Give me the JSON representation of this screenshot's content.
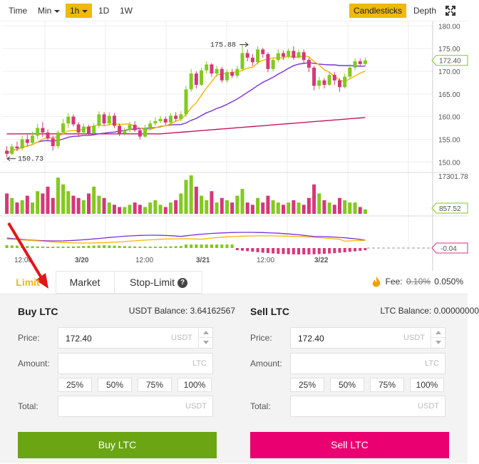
{
  "toolbar": {
    "time_label": "Time",
    "min_label": "Min",
    "interval_label": "1h",
    "day_label": "1D",
    "week_label": "1W",
    "candlesticks_label": "Candlesticks",
    "depth_label": "Depth",
    "fullscreen_icon": "expand-icon"
  },
  "chart": {
    "price_ticks": [
      "180.00",
      "175.00",
      "172.40",
      "170.00",
      "165.00",
      "160.00",
      "155.00",
      "150.00"
    ],
    "current_price": "172.40",
    "high_label": "175.88",
    "low_label": "150.73",
    "volume_max_label": "17301.78",
    "volume_current": "857.52",
    "macd_current": "-0.04",
    "time_labels": [
      "12:00",
      "3/20",
      "12:00",
      "3/21",
      "12:00",
      "3/22"
    ],
    "colors": {
      "up": "#82c91e",
      "down": "#d6377a",
      "ma_short": "#f7b500",
      "ma_mid": "#7b2fd6",
      "ma_long": "#c2185b"
    }
  },
  "chart_data": {
    "type": "candlestick",
    "ylim": [
      148,
      181
    ],
    "y_ticks": [
      150,
      155,
      160,
      165,
      170,
      175,
      180
    ],
    "last_price": 172.4,
    "high": 175.88,
    "low": 150.73,
    "candles": [
      [
        152.5,
        151.8,
        153.5,
        151.0
      ],
      [
        151.8,
        153.4,
        154.0,
        151.5
      ],
      [
        153.4,
        153.0,
        154.5,
        152.4
      ],
      [
        153.0,
        155.0,
        155.8,
        152.5
      ],
      [
        155.0,
        154.2,
        156.0,
        153.5
      ],
      [
        154.2,
        155.8,
        156.7,
        154.0
      ],
      [
        155.8,
        157.5,
        158.4,
        155.0
      ],
      [
        157.5,
        156.5,
        158.8,
        155.5
      ],
      [
        156.5,
        155.2,
        157.2,
        154.5
      ],
      [
        155.2,
        153.5,
        155.8,
        152.5
      ],
      [
        153.5,
        156.5,
        157.0,
        153.0
      ],
      [
        156.5,
        158.5,
        159.5,
        156.0
      ],
      [
        158.5,
        160.0,
        160.8,
        157.5
      ],
      [
        160.0,
        158.3,
        160.5,
        157.8
      ],
      [
        158.3,
        156.5,
        158.8,
        155.5
      ],
      [
        156.5,
        157.8,
        158.5,
        155.8
      ],
      [
        157.8,
        156.3,
        158.2,
        155.8
      ],
      [
        156.3,
        158.0,
        158.6,
        156.0
      ],
      [
        158.0,
        160.5,
        161.2,
        157.5
      ],
      [
        160.5,
        158.5,
        161.0,
        158.0
      ],
      [
        158.5,
        160.2,
        161.0,
        158.0
      ],
      [
        160.2,
        158.0,
        160.8,
        157.5
      ],
      [
        158.0,
        156.3,
        158.5,
        155.7
      ],
      [
        156.3,
        157.0,
        157.6,
        155.8
      ],
      [
        157.0,
        158.2,
        158.8,
        156.5
      ],
      [
        158.2,
        157.0,
        159.0,
        156.6
      ],
      [
        157.0,
        155.6,
        157.5,
        155.0
      ],
      [
        155.6,
        157.5,
        158.2,
        155.3
      ],
      [
        157.5,
        158.5,
        159.2,
        157.0
      ],
      [
        158.5,
        159.0,
        159.8,
        158.0
      ],
      [
        159.0,
        159.5,
        160.2,
        158.5
      ],
      [
        159.5,
        158.7,
        160.0,
        158.2
      ],
      [
        158.7,
        160.2,
        160.8,
        158.0
      ],
      [
        160.2,
        159.5,
        161.0,
        159.0
      ],
      [
        159.5,
        160.5,
        161.2,
        159.0
      ],
      [
        160.5,
        166.0,
        166.8,
        160.0
      ],
      [
        166.0,
        169.5,
        170.5,
        165.5
      ],
      [
        169.5,
        167.0,
        170.0,
        166.2
      ],
      [
        167.0,
        170.2,
        170.8,
        166.8
      ],
      [
        170.2,
        171.5,
        172.2,
        169.5
      ],
      [
        171.5,
        169.5,
        171.8,
        168.8
      ],
      [
        169.5,
        170.5,
        171.2,
        168.8
      ],
      [
        170.5,
        168.0,
        171.0,
        167.5
      ],
      [
        168.0,
        169.8,
        170.4,
        167.5
      ],
      [
        169.8,
        169.0,
        170.5,
        168.5
      ],
      [
        169.0,
        170.5,
        171.2,
        168.5
      ],
      [
        170.5,
        174.0,
        175.88,
        170.0
      ],
      [
        174.0,
        173.0,
        174.8,
        172.2
      ],
      [
        173.0,
        172.0,
        173.8,
        171.2
      ],
      [
        172.0,
        174.8,
        175.5,
        171.5
      ],
      [
        174.8,
        173.8,
        175.2,
        173.0
      ],
      [
        173.8,
        170.5,
        174.2,
        169.8
      ],
      [
        170.5,
        172.5,
        173.0,
        170.0
      ],
      [
        172.5,
        174.0,
        174.8,
        172.0
      ],
      [
        174.0,
        173.2,
        174.6,
        172.5
      ],
      [
        173.2,
        174.5,
        175.0,
        172.8
      ],
      [
        174.5,
        173.0,
        175.5,
        172.5
      ],
      [
        173.0,
        174.2,
        174.8,
        172.8
      ],
      [
        174.2,
        172.5,
        174.8,
        171.8
      ],
      [
        172.5,
        170.8,
        173.0,
        169.8
      ],
      [
        170.8,
        166.8,
        171.2,
        165.8
      ],
      [
        166.8,
        168.0,
        168.8,
        166.0
      ],
      [
        168.0,
        167.0,
        168.5,
        166.2
      ],
      [
        167.0,
        169.2,
        169.8,
        166.8
      ],
      [
        169.2,
        168.0,
        169.8,
        167.0
      ],
      [
        168.0,
        166.5,
        168.5,
        165.5
      ],
      [
        166.5,
        168.8,
        169.5,
        166.2
      ],
      [
        168.8,
        170.8,
        171.5,
        168.5
      ],
      [
        170.8,
        172.2,
        172.8,
        170.2
      ],
      [
        172.2,
        171.6,
        172.8,
        171.0
      ],
      [
        171.6,
        172.4,
        173.0,
        171.2
      ]
    ],
    "volume": [
      9,
      7,
      5,
      6,
      8,
      5,
      10,
      9,
      12,
      7,
      16,
      13,
      10,
      8,
      7,
      6,
      9,
      12,
      8,
      7,
      5,
      4,
      3,
      3,
      4,
      5,
      4,
      3,
      5,
      6,
      4,
      3,
      5,
      6,
      9,
      15,
      17,
      12,
      8,
      6,
      10,
      5,
      7,
      6,
      5,
      8,
      11,
      5,
      4,
      7,
      5,
      8,
      6,
      5,
      4,
      5,
      6,
      5,
      4,
      7,
      13,
      9,
      6,
      5,
      4,
      7,
      6,
      5,
      5,
      3,
      2
    ],
    "volume_max": 17301.78,
    "volume_last": 857.52,
    "macd_last": -0.04
  },
  "tabs": {
    "limit": "Limit",
    "market": "Market",
    "stop_limit": "Stop-Limit",
    "help_icon": "?"
  },
  "fee": {
    "label": "Fee:",
    "old": "0.10%",
    "new": "0.050%"
  },
  "buy": {
    "title": "Buy LTC",
    "balance_label": "USDT Balance: 3.64162567",
    "price_label": "Price:",
    "price_value": "172.40",
    "price_unit": "USDT",
    "amount_label": "Amount:",
    "amount_unit": "LTC",
    "total_label": "Total:",
    "total_unit": "USDT",
    "pcts": [
      "25%",
      "50%",
      "75%",
      "100%"
    ],
    "button": "Buy LTC"
  },
  "sell": {
    "title": "Sell LTC",
    "balance_label": "LTC Balance: 0.00000000",
    "price_label": "Price:",
    "price_value": "172.40",
    "price_unit": "USDT",
    "amount_label": "Amount:",
    "amount_unit": "LTC",
    "total_label": "Total:",
    "total_unit": "USDT",
    "pcts": [
      "25%",
      "50%",
      "75%",
      "100%"
    ],
    "button": "Sell LTC"
  }
}
